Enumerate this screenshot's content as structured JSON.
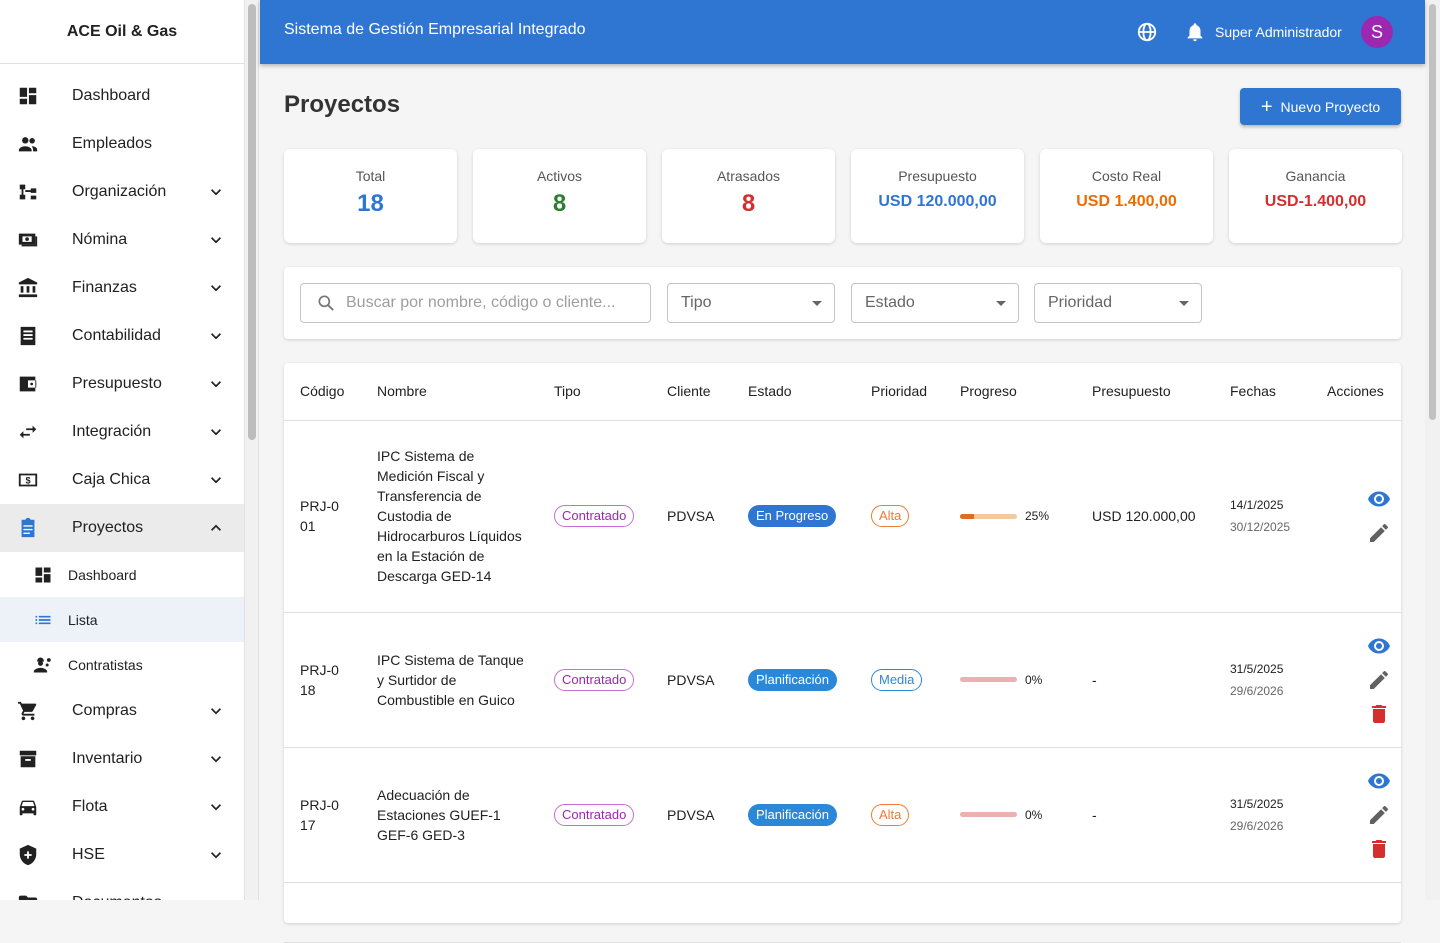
{
  "sidebar": {
    "brand": "ACE Oil & Gas",
    "items": [
      {
        "label": "Dashboard",
        "icon": "dashboard-icon",
        "chev": false
      },
      {
        "label": "Empleados",
        "icon": "people-icon",
        "chev": false
      },
      {
        "label": "Organización",
        "icon": "org-chart-icon",
        "chev": true
      },
      {
        "label": "Nómina",
        "icon": "payroll-icon",
        "chev": true
      },
      {
        "label": "Finanzas",
        "icon": "bank-icon",
        "chev": true
      },
      {
        "label": "Contabilidad",
        "icon": "receipt-icon",
        "chev": true
      },
      {
        "label": "Presupuesto",
        "icon": "wallet-icon",
        "chev": true
      },
      {
        "label": "Integración",
        "icon": "swap-icon",
        "chev": true
      },
      {
        "label": "Caja Chica",
        "icon": "cash-icon",
        "chev": true
      },
      {
        "label": "Proyectos",
        "icon": "clipboard-icon",
        "chev": true,
        "open": true,
        "sub": [
          {
            "label": "Dashboard",
            "icon": "dashboard-icon"
          },
          {
            "label": "Lista",
            "icon": "list-icon",
            "active": true
          },
          {
            "label": "Contratistas",
            "icon": "engineer-icon"
          }
        ]
      },
      {
        "label": "Compras",
        "icon": "cart-icon",
        "chev": true
      },
      {
        "label": "Inventario",
        "icon": "archive-icon",
        "chev": true
      },
      {
        "label": "Flota",
        "icon": "car-icon",
        "chev": true
      },
      {
        "label": "HSE",
        "icon": "shield-icon",
        "chev": true
      },
      {
        "label": "Documentos",
        "icon": "folder-icon",
        "chev": true
      }
    ]
  },
  "header": {
    "title": "Sistema de Gestión Empresarial Integrado",
    "user": "Super Administrador",
    "avatar": "S"
  },
  "page": {
    "title": "Proyectos",
    "new_button": "Nuevo Proyecto"
  },
  "stats": [
    {
      "label": "Total",
      "value": "18",
      "color": "#2f76d2"
    },
    {
      "label": "Activos",
      "value": "8",
      "color": "#2e7d32"
    },
    {
      "label": "Atrasados",
      "value": "8",
      "color": "#d32f2f"
    },
    {
      "label": "Presupuesto",
      "value": "USD 120.000,00",
      "color": "#2f76d2"
    },
    {
      "label": "Costo Real",
      "value": "USD 1.400,00",
      "color": "#ed6c02"
    },
    {
      "label": "Ganancia",
      "value": "USD-1.400,00",
      "color": "#d32f2f"
    }
  ],
  "filters": {
    "search_placeholder": "Buscar por nombre, código o cliente...",
    "tipo": "Tipo",
    "estado": "Estado",
    "prioridad": "Prioridad"
  },
  "table": {
    "columns": [
      "Código",
      "Nombre",
      "Tipo",
      "Cliente",
      "Estado",
      "Prioridad",
      "Progreso",
      "Presupuesto",
      "Fechas",
      "Acciones"
    ],
    "rows": [
      {
        "codigo": "PRJ-001",
        "nombre": "IPC Sistema de Medición Fiscal y Transferencia de Custodia de Hidrocarburos Líquidos en la Estación de Descarga GED-14",
        "tipo": "Contratado",
        "cliente": "PDVSA",
        "estado": "En Progreso",
        "estado_color": "#2f76d2",
        "prioridad": "Alta",
        "prioridad_color": "#ed7d31",
        "progreso": 25,
        "progreso_label": "25%",
        "bar_color": "#e36b1f",
        "bar_bg": "#f5c9a0",
        "presupuesto": "USD 120.000,00",
        "inicio": "14/1/2025",
        "fin": "30/12/2025",
        "delete": false
      },
      {
        "codigo": "PRJ-018",
        "nombre": "IPC Sistema de Tanque y Surtidor de Combustible en Guico",
        "tipo": "Contratado",
        "cliente": "PDVSA",
        "estado": "Planificación",
        "estado_color": "#2b88d8",
        "prioridad": "Media",
        "prioridad_color": "#2b88d8",
        "progreso": 0,
        "progreso_label": "0%",
        "bar_color": "#d32f2f",
        "bar_bg": "#ebb0b0",
        "presupuesto": "-",
        "inicio": "31/5/2025",
        "fin": "29/6/2026",
        "delete": true
      },
      {
        "codigo": "PRJ-017",
        "nombre": "Adecuación de Estaciones GUEF-1 GEF-6 GED-3",
        "tipo": "Contratado",
        "cliente": "PDVSA",
        "estado": "Planificación",
        "estado_color": "#2b88d8",
        "prioridad": "Alta",
        "prioridad_color": "#ed7d31",
        "progreso": 0,
        "progreso_label": "0%",
        "bar_color": "#d32f2f",
        "bar_bg": "#ebb0b0",
        "presupuesto": "-",
        "inicio": "31/5/2025",
        "fin": "29/6/2026",
        "delete": true
      }
    ]
  },
  "colors": {
    "primary": "#2f76d2",
    "tipo_chip": "#9c27b0"
  }
}
